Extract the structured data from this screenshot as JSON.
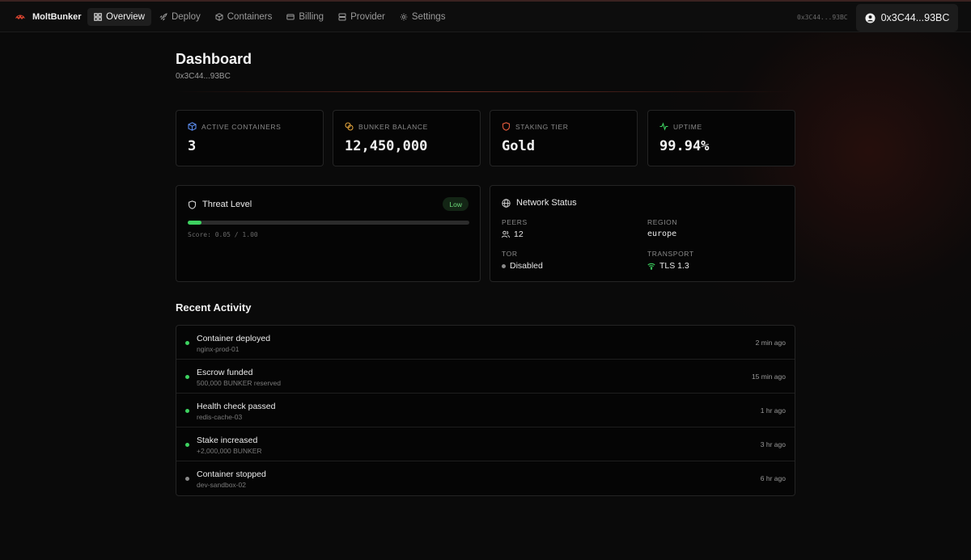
{
  "app": {
    "name": "MoltBunker"
  },
  "nav": {
    "items": [
      {
        "label": "Overview",
        "icon": "grid-icon"
      },
      {
        "label": "Deploy",
        "icon": "rocket-icon"
      },
      {
        "label": "Containers",
        "icon": "box-icon"
      },
      {
        "label": "Billing",
        "icon": "card-icon"
      },
      {
        "label": "Provider",
        "icon": "server-icon"
      },
      {
        "label": "Settings",
        "icon": "gear-icon"
      }
    ],
    "active": "Overview"
  },
  "wallet": {
    "address_small": "0x3C44...93BC",
    "button_label": "0x3C44...93BC"
  },
  "header": {
    "title": "Dashboard",
    "subtitle": "0x3C44...93BC"
  },
  "stats": [
    {
      "label": "ACTIVE CONTAINERS",
      "value": "3",
      "icon": "cube-icon",
      "color": "#5b8def"
    },
    {
      "label": "BUNKER BALANCE",
      "value": "12,450,000",
      "icon": "coins-icon",
      "color": "#e0a23c"
    },
    {
      "label": "STAKING TIER",
      "value": "Gold",
      "icon": "shield-icon",
      "color": "#e05a3c"
    },
    {
      "label": "UPTIME",
      "value": "99.94%",
      "icon": "activity-icon",
      "color": "#3dd260"
    }
  ],
  "threat": {
    "title": "Threat Level",
    "badge": "Low",
    "score": 0.05,
    "score_text": "Score: 0.05 / 1.00"
  },
  "network": {
    "title": "Network Status",
    "peers_label": "PEERS",
    "peers_value": "12",
    "region_label": "REGION",
    "region_value": "europe",
    "tor_label": "TOR",
    "tor_value": "Disabled",
    "transport_label": "TRANSPORT",
    "transport_value": "TLS 1.3"
  },
  "activity": {
    "title": "Recent Activity",
    "items": [
      {
        "title": "Container deployed",
        "sub": "nginx-prod-01",
        "time": "2 min ago",
        "status_color": "#3dd260"
      },
      {
        "title": "Escrow funded",
        "sub": "500,000 BUNKER reserved",
        "time": "15 min ago",
        "status_color": "#3dd260"
      },
      {
        "title": "Health check passed",
        "sub": "redis-cache-03",
        "time": "1 hr ago",
        "status_color": "#3dd260"
      },
      {
        "title": "Stake increased",
        "sub": "+2,000,000 BUNKER",
        "time": "3 hr ago",
        "status_color": "#3dd260"
      },
      {
        "title": "Container stopped",
        "sub": "dev-sandbox-02",
        "time": "6 hr ago",
        "status_color": "#8a8a8a"
      }
    ]
  }
}
